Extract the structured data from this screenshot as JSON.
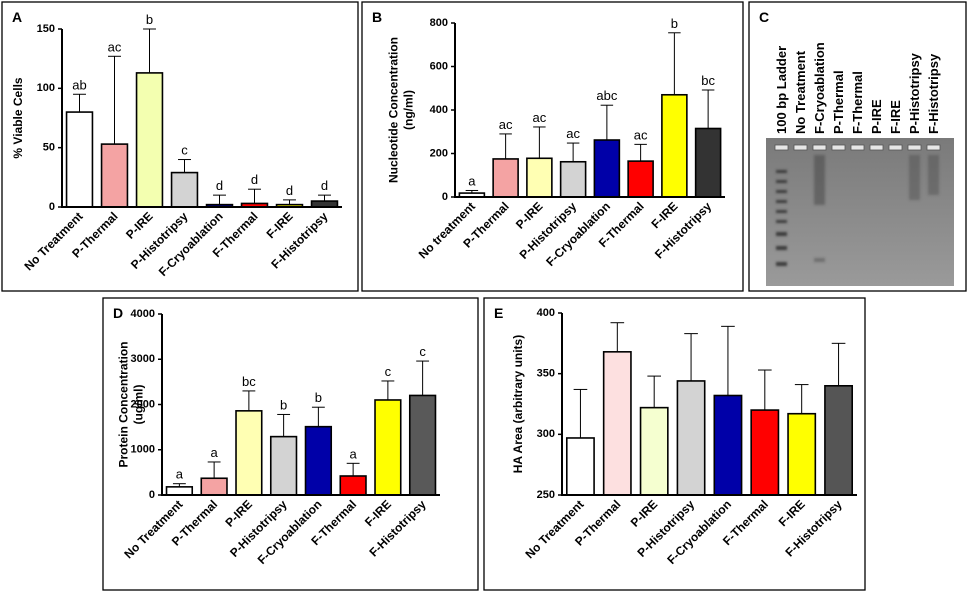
{
  "chart_data": [
    {
      "type": "bar",
      "title": "A",
      "ylabel": [
        "% Viable Cells"
      ],
      "categories": [
        "No Treatment",
        "P-Thermal",
        "P-IRE",
        "P-Histotripsy",
        "F-Cryoablation",
        "F-Thermal",
        "F-IRE",
        "F-Histotripsy"
      ],
      "values": [
        80,
        53,
        113,
        29,
        2,
        3,
        2,
        5
      ],
      "errors": [
        15,
        74,
        37,
        11,
        8,
        12,
        4,
        5
      ],
      "letters": [
        "ab",
        "ac",
        "b",
        "c",
        "d",
        "d",
        "d",
        "d"
      ],
      "colors": [
        "#ffffff",
        "#f4a3a3",
        "#f3ffb0",
        "#d3d3d3",
        "#00008b",
        "#ff0000",
        "#ffff00",
        "#333333"
      ],
      "ylim": [
        0,
        150
      ],
      "yticks": [
        0,
        50,
        100,
        150
      ]
    },
    {
      "type": "bar",
      "title": "B",
      "ylabel": [
        "Nucleotide  Concentration",
        "(ng/ml)"
      ],
      "categories": [
        "No treatment",
        "P-Thermal",
        "P-IRE",
        "P-Histotripsy",
        "F-Cryoablation",
        "F-Thermal",
        "F-IRE",
        "F-Histotripsy"
      ],
      "values": [
        18,
        175,
        178,
        162,
        262,
        165,
        470,
        315
      ],
      "errors": [
        12,
        115,
        144,
        86,
        160,
        77,
        285,
        177
      ],
      "letters": [
        "a",
        "ac",
        "ac",
        "ac",
        "abc",
        "ac",
        "b",
        "bc"
      ],
      "colors": [
        "#ffffff",
        "#f4a3a3",
        "#ffffb3",
        "#d3d3d3",
        "#0000a8",
        "#ff0000",
        "#ffff00",
        "#333333"
      ],
      "ylim": [
        0,
        800
      ],
      "yticks": [
        0,
        200,
        400,
        600,
        800
      ]
    },
    {
      "type": "gel",
      "title": "C",
      "lanes": [
        "100 bp Ladder",
        "No Treatment",
        "F-Cryoablation",
        "P-Thermal",
        "F-Thermal",
        "P-IRE",
        "F-IRE",
        "P-Histotripsy",
        "F-Histotripsy"
      ]
    },
    {
      "type": "bar",
      "title": "D",
      "ylabel": [
        "Protein Concentration",
        "(ug/ml)"
      ],
      "categories": [
        "No Treatment",
        "P-Thermal",
        "P-IRE",
        "P-Histotripsy",
        "F-Cryoablation",
        "F-Thermal",
        "F-IRE",
        "F-Histotripsy"
      ],
      "values": [
        180,
        370,
        1860,
        1290,
        1510,
        420,
        2100,
        2200
      ],
      "errors": [
        70,
        360,
        440,
        490,
        430,
        280,
        420,
        760
      ],
      "letters": [
        "a",
        "a",
        "bc",
        "b",
        "b",
        "a",
        "c",
        "c"
      ],
      "colors": [
        "#ffffff",
        "#f4a3a3",
        "#ffffb3",
        "#d3d3d3",
        "#0000a8",
        "#ff0000",
        "#ffff00",
        "#595959"
      ],
      "ylim": [
        0,
        4000
      ],
      "yticks": [
        0,
        1000,
        2000,
        3000,
        4000
      ]
    },
    {
      "type": "bar",
      "title": "E",
      "ylabel": [
        "HA Area (arbitrary units)"
      ],
      "categories": [
        "No Treatment",
        "P-Thermal",
        "P-IRE",
        "P-Histotripsy",
        "F-Cryoablation",
        "F-Thermal",
        "F-IRE",
        "F-Histotripsy"
      ],
      "values": [
        297,
        368,
        322,
        344,
        332,
        320,
        317,
        340
      ],
      "errors": [
        40,
        24,
        26,
        39,
        57,
        33,
        24,
        35
      ],
      "colors": [
        "#ffffff",
        "#fde0e0",
        "#f5ffd0",
        "#d3d3d3",
        "#0000a8",
        "#ff0000",
        "#ffff00",
        "#555555"
      ],
      "ylim": [
        250,
        400
      ],
      "yticks": [
        250,
        300,
        350,
        400
      ]
    }
  ]
}
